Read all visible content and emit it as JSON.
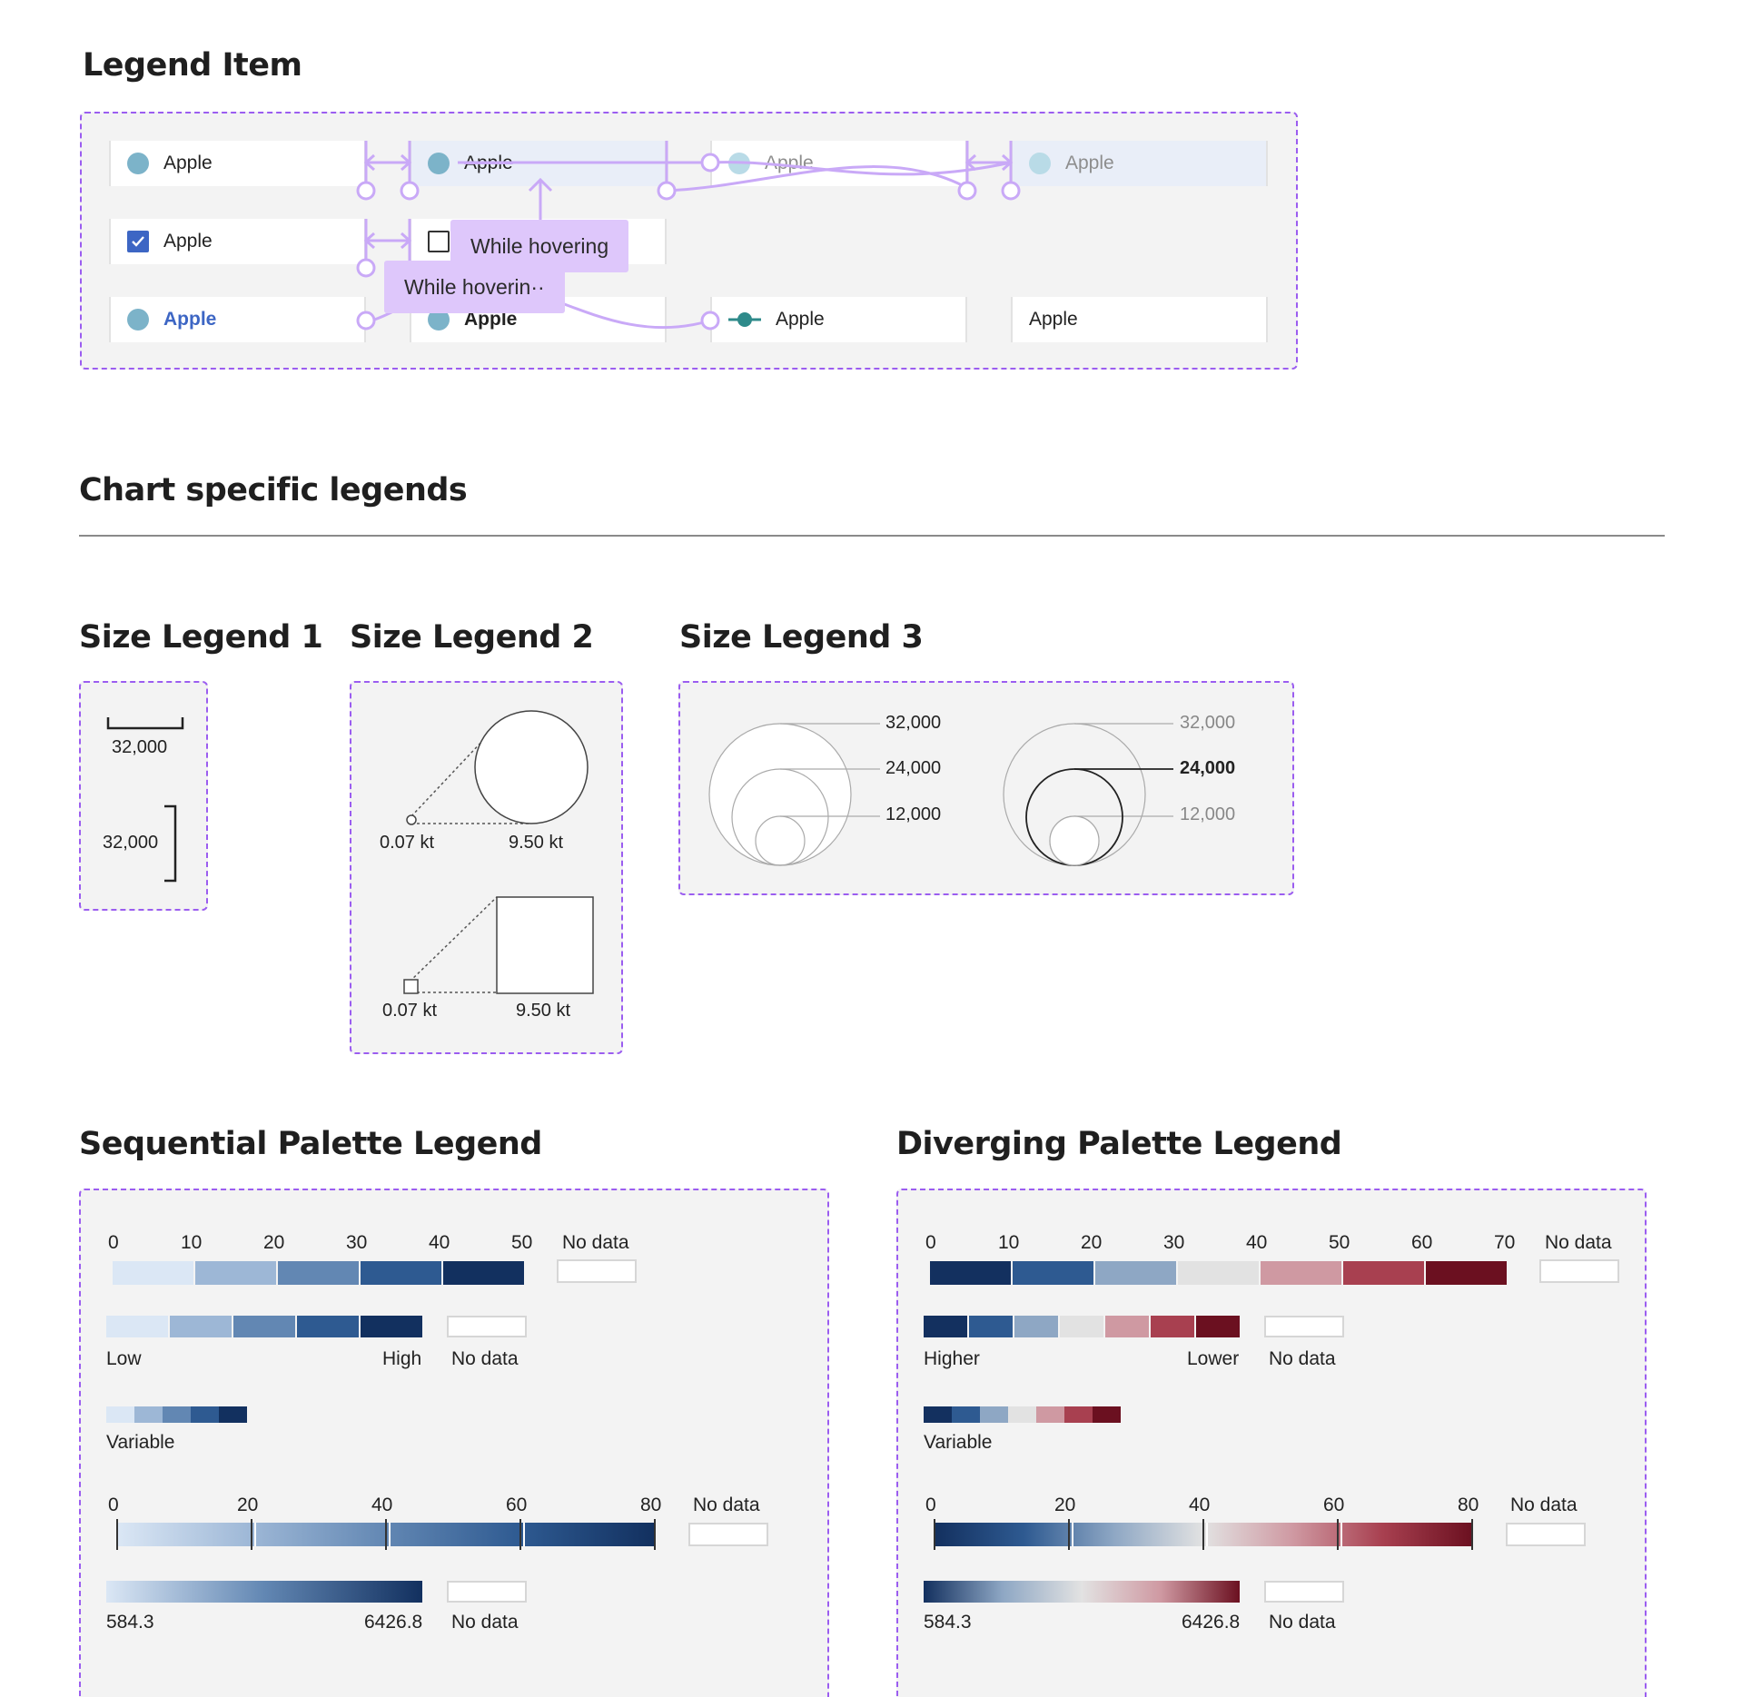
{
  "legend_item": {
    "title": "Legend Item",
    "label": "Apple",
    "annotation": "While hovering",
    "annotation_cut": "While hoverin··"
  },
  "chart_specific": {
    "title": "Chart specific legends"
  },
  "size1": {
    "title": "Size Legend 1",
    "value_h": "32,000",
    "value_v": "32,000"
  },
  "size2": {
    "title": "Size Legend 2",
    "min": "0.07 kt",
    "max": "9.50 kt",
    "min2": "0.07 kt",
    "max2": "9.50 kt"
  },
  "size3": {
    "title": "Size Legend 3",
    "values": [
      "32,000",
      "24,000",
      "12,000"
    ]
  },
  "sequential": {
    "title": "Sequential Palette Legend",
    "ticks_a": [
      "0",
      "10",
      "20",
      "30",
      "40",
      "50"
    ],
    "no_data": "No data",
    "low": "Low",
    "high": "High",
    "variable": "Variable",
    "ticks_b": [
      "0",
      "20",
      "40",
      "60",
      "80"
    ],
    "min_val": "584.3",
    "max_val": "6426.8",
    "colors": [
      "#dbe7f5",
      "#9db7d6",
      "#6287b3",
      "#2e5a91",
      "#12305f"
    ]
  },
  "diverging": {
    "title": "Diverging Palette Legend",
    "ticks_a": [
      "0",
      "10",
      "20",
      "30",
      "40",
      "50",
      "60",
      "70"
    ],
    "no_data": "No data",
    "higher": "Higher",
    "lower": "Lower",
    "variable": "Variable",
    "ticks_b": [
      "0",
      "20",
      "40",
      "60",
      "80"
    ],
    "min_val": "584.3",
    "max_val": "6426.8",
    "colors": [
      "#13305f",
      "#2e5a91",
      "#8ea7c4",
      "#e2e2e2",
      "#cf99a2",
      "#a84050",
      "#6b1020"
    ]
  }
}
